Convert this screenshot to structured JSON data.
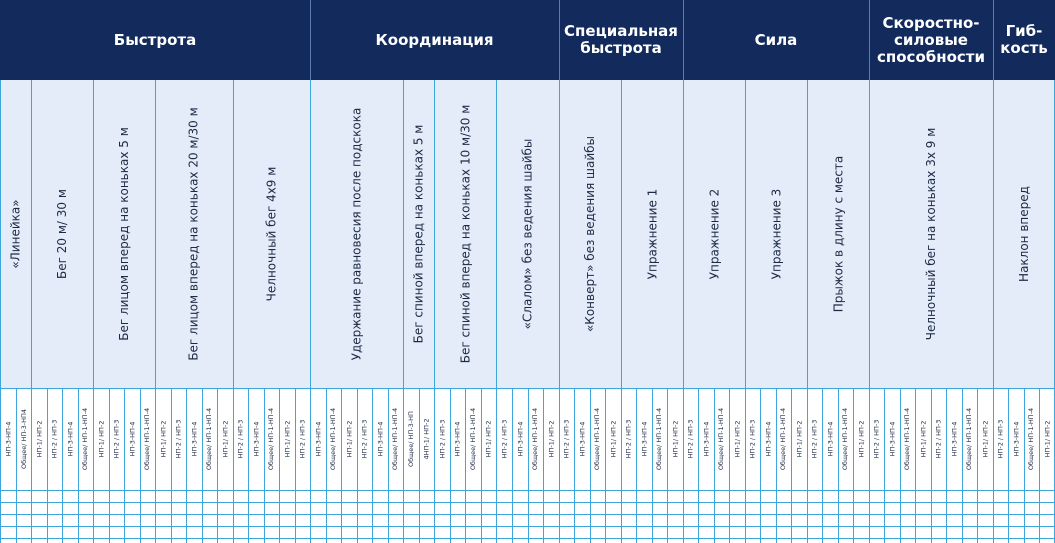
{
  "categories": [
    {
      "label": "Быстрота",
      "span": [
        0,
        20
      ]
    },
    {
      "label": "Координация",
      "span": [
        20,
        36
      ]
    },
    {
      "label": "Специальная быстрота",
      "span": [
        36,
        44
      ]
    },
    {
      "label": "Сила",
      "span": [
        44,
        56
      ]
    },
    {
      "label": "Скоростно-силовые способности",
      "span": [
        56,
        64
      ]
    },
    {
      "label": "Гиб-кость",
      "span": [
        64,
        68
      ]
    }
  ],
  "tests": [
    {
      "label": "«Линейка»",
      "span": [
        0,
        2
      ]
    },
    {
      "label": "Бег 20 м/ 30 м",
      "span": [
        2,
        6
      ]
    },
    {
      "label": "Бег лицом вперед на коньках 5 м",
      "span": [
        6,
        10
      ]
    },
    {
      "label": "Бег лицом вперед на коньках 20 м/30 м",
      "span": [
        10,
        15
      ]
    },
    {
      "label": "Челночный бег 4х9 м",
      "span": [
        15,
        20
      ]
    },
    {
      "label": "Удержание равновесия после подскока",
      "span": [
        20,
        26
      ]
    },
    {
      "label": "Бег спиной вперед на коньках 5 м",
      "span": [
        26,
        28
      ]
    },
    {
      "label": "Бег спиной вперед на коньках 10 м/30 м",
      "span": [
        28,
        32
      ]
    },
    {
      "label": "«Слалом» без ведения шайбы",
      "span": [
        32,
        36
      ]
    },
    {
      "label": "«Конверт» без ведения шайбы",
      "span": [
        36,
        40
      ]
    },
    {
      "label": "Упражнение 1",
      "span": [
        40,
        44
      ]
    },
    {
      "label": "Упражнение 2",
      "span": [
        44,
        48
      ]
    },
    {
      "label": "Упражнение 3",
      "span": [
        48,
        52
      ]
    },
    {
      "label": "Прыжок в длину с места",
      "span": [
        52,
        56
      ]
    },
    {
      "label": "Челночный бег на коньках 3х 9 м",
      "span": [
        56,
        64
      ]
    },
    {
      "label": "Наклон вперед",
      "span": [
        64,
        68
      ]
    }
  ],
  "groups": [
    "НП-3-НП-4",
    "Общее/ НП-3-НП4",
    "НП-1/ НП-2",
    "НП-2 / НП-3",
    "НП-3-НП-4",
    "Общее/ НП-1-НП-4",
    "НП-1/ НП-2",
    "НП-2 / НП-3",
    "НП-3-НП-4",
    "Общее/ НП-1-НП-4",
    "НП-1/ НП-2",
    "НП-2 / НП-3",
    "НП-3-НП-4",
    "Общее/ НП-1-НП-4",
    "НП-1/ НП-2",
    "НП-2 / НП-3",
    "НП-3-НП-4",
    "Общее/ НП-1-НП-4",
    "НП-1/ НП-2",
    "НП-2 / НП-3",
    "НП-3-НП-4",
    "Общее/ НП-1-НП-4",
    "НП-1/ НП-2",
    "НП-2 / НП-3",
    "НП-3-НП-4",
    "Общее/ НП-1-НП-4",
    "Общее/ НП-3-НП",
    "4НП-1/ НП-2",
    "НП-2 / НП-3",
    "НП-3-НП-4",
    "Общее/ НП-1-НП-4",
    "НП-1/ НП-2",
    "НП-2 / НП-3",
    "НП-3-НП-4",
    "Общее/ НП-1-НП-4",
    "НП-1/ НП-2",
    "НП-2 / НП-3",
    "НП-3-НП-4",
    "Общее/ НП-1-НП-4",
    "НП-1/ НП-2",
    "НП-2 / НП-3",
    "НП-3-НП-4",
    "Общее/ НП-1-НП-4",
    "НП-1/ НП-2",
    "НП-2 / НП-3",
    "НП-3-НП-4",
    "Общее/ НП-1-НП-4",
    "НП-1/ НП-2",
    "НП-2 / НП-3",
    "НП-3-НП-4",
    "Общее/ НП-1-НП-4",
    "НП-1/ НП-2",
    "НП-2 / НП-3",
    "НП-3-НП-4",
    "Общее/ НП-1-НП-4",
    "НП-1/ НП-2",
    "НП-2 / НП-3",
    "НП-3-НП-4",
    "Общее/ НП-1-НП-4",
    "НП-1/ НП-2",
    "НП-2 / НП-3",
    "НП-3-НП-4",
    "Общее/ НП-1-НП-4",
    "НП-1/ НП-2",
    "НП-2 / НП-3",
    "НП-3-НП-4",
    "Общее/ НП-1-НП-4",
    "НП-1/ НП-2"
  ],
  "empty_rows": 4,
  "colors": {
    "header_bg": "#132a5c",
    "header_text": "#ffffff",
    "band_bg": "#e3ecf8",
    "grid_line": "#3da6dd",
    "text": "#1d2a45"
  }
}
